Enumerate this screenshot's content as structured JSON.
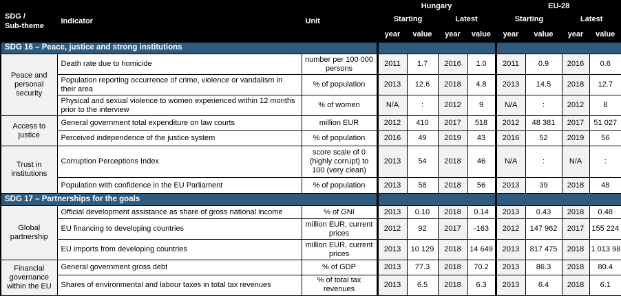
{
  "table": {
    "header": {
      "col1_line1": "SDG /",
      "col1_line2": "Sub-theme",
      "indicator": "Indicator",
      "unit": "Unit",
      "groups": [
        "Hungary",
        "EU-28"
      ],
      "subgroups": [
        "Starting",
        "Latest"
      ],
      "year_label": "year",
      "value_label": "value"
    },
    "sections": [
      {
        "title": "SDG 16 – Peace, justice and strong institutions",
        "subthemes": [
          {
            "name": "Peace and personal security",
            "rows": [
              {
                "indicator": "Death rate due to homicide",
                "unit": "number per 100 000 persons",
                "hu": [
                  "2011",
                  "1.7",
                  "2016",
                  "1.0"
                ],
                "eu": [
                  "2011",
                  "0.9",
                  "2016",
                  "0.6"
                ]
              },
              {
                "indicator": "Population reporting occurrence of crime, violence or vandalism in their area",
                "unit": "% of population",
                "hu": [
                  "2013",
                  "12.6",
                  "2018",
                  "4.8"
                ],
                "eu": [
                  "2013",
                  "14.5",
                  "2018",
                  "12.7"
                ]
              },
              {
                "indicator": "Physical and sexual violence to women experienced within 12 months prior to the interview",
                "unit": "% of women",
                "hu": [
                  "N/A",
                  ":",
                  "2012",
                  "9"
                ],
                "eu": [
                  "N/A",
                  ":",
                  "2012",
                  "8"
                ]
              }
            ]
          },
          {
            "name": "Access to justice",
            "rows": [
              {
                "indicator": "General government total expenditure on law courts",
                "unit": "million EUR",
                "hu": [
                  "2012",
                  "410",
                  "2017",
                  "518"
                ],
                "eu": [
                  "2012",
                  "48 381",
                  "2017",
                  "51 027"
                ]
              },
              {
                "indicator": "Perceived independence of the justice system",
                "unit": "% of population",
                "hu": [
                  "2016",
                  "49",
                  "2019",
                  "43"
                ],
                "eu": [
                  "2016",
                  "52",
                  "2019",
                  "56"
                ]
              }
            ]
          },
          {
            "name": "Trust in institutions",
            "rows": [
              {
                "indicator": "Corruption Perceptions Index",
                "unit": "score scale of 0 (highly corrupt) to 100 (very clean)",
                "hu": [
                  "2013",
                  "54",
                  "2018",
                  "46"
                ],
                "eu": [
                  "N/A",
                  ":",
                  "N/A",
                  ":"
                ]
              },
              {
                "indicator": "Population with confidence in the EU Parliament",
                "unit": "% of population",
                "hu": [
                  "2013",
                  "58",
                  "2018",
                  "56"
                ],
                "eu": [
                  "2013",
                  "39",
                  "2018",
                  "48"
                ]
              }
            ]
          }
        ]
      },
      {
        "title": "SDG 17 – Partnerships for the goals",
        "subthemes": [
          {
            "name": "Global partnership",
            "rows": [
              {
                "indicator": "Official development assistance as share of gross national income",
                "unit": "% of GNI",
                "hu": [
                  "2013",
                  "0.10",
                  "2018",
                  "0.14"
                ],
                "eu": [
                  "2013",
                  "0.43",
                  "2018",
                  "0.48"
                ]
              },
              {
                "indicator": "EU financing to developing countries",
                "unit": "million EUR, current prices",
                "hu": [
                  "2012",
                  "92",
                  "2017",
                  "-163"
                ],
                "eu": [
                  "2012",
                  "147 962",
                  "2017",
                  "155 224"
                ]
              },
              {
                "indicator": "EU imports from developing countries",
                "unit": "million EUR, current prices",
                "hu": [
                  "2013",
                  "10 129",
                  "2018",
                  "14 649"
                ],
                "eu": [
                  "2013",
                  "817 475",
                  "2018",
                  "1 013 981"
                ]
              }
            ]
          },
          {
            "name": "Financial governance within the EU",
            "rows": [
              {
                "indicator": "General government gross debt",
                "unit": "% of GDP",
                "hu": [
                  "2013",
                  "77.3",
                  "2018",
                  "70.2"
                ],
                "eu": [
                  "2013",
                  "86.3",
                  "2018",
                  "80.4"
                ]
              },
              {
                "indicator": "Shares of environmental and labour taxes in total tax revenues",
                "unit": "% of total tax revenues",
                "hu": [
                  "2013",
                  "6.5",
                  "2018",
                  "6.3"
                ],
                "eu": [
                  "2013",
                  "6.4",
                  "2018",
                  "6.1"
                ]
              }
            ]
          }
        ]
      }
    ],
    "colors": {
      "header_bg": "#000000",
      "section_bg": "#2e5c80",
      "year_cell_bg": "#f2f2f2",
      "subtheme_bg": "#f2f2f2",
      "border": "#000000"
    }
  }
}
